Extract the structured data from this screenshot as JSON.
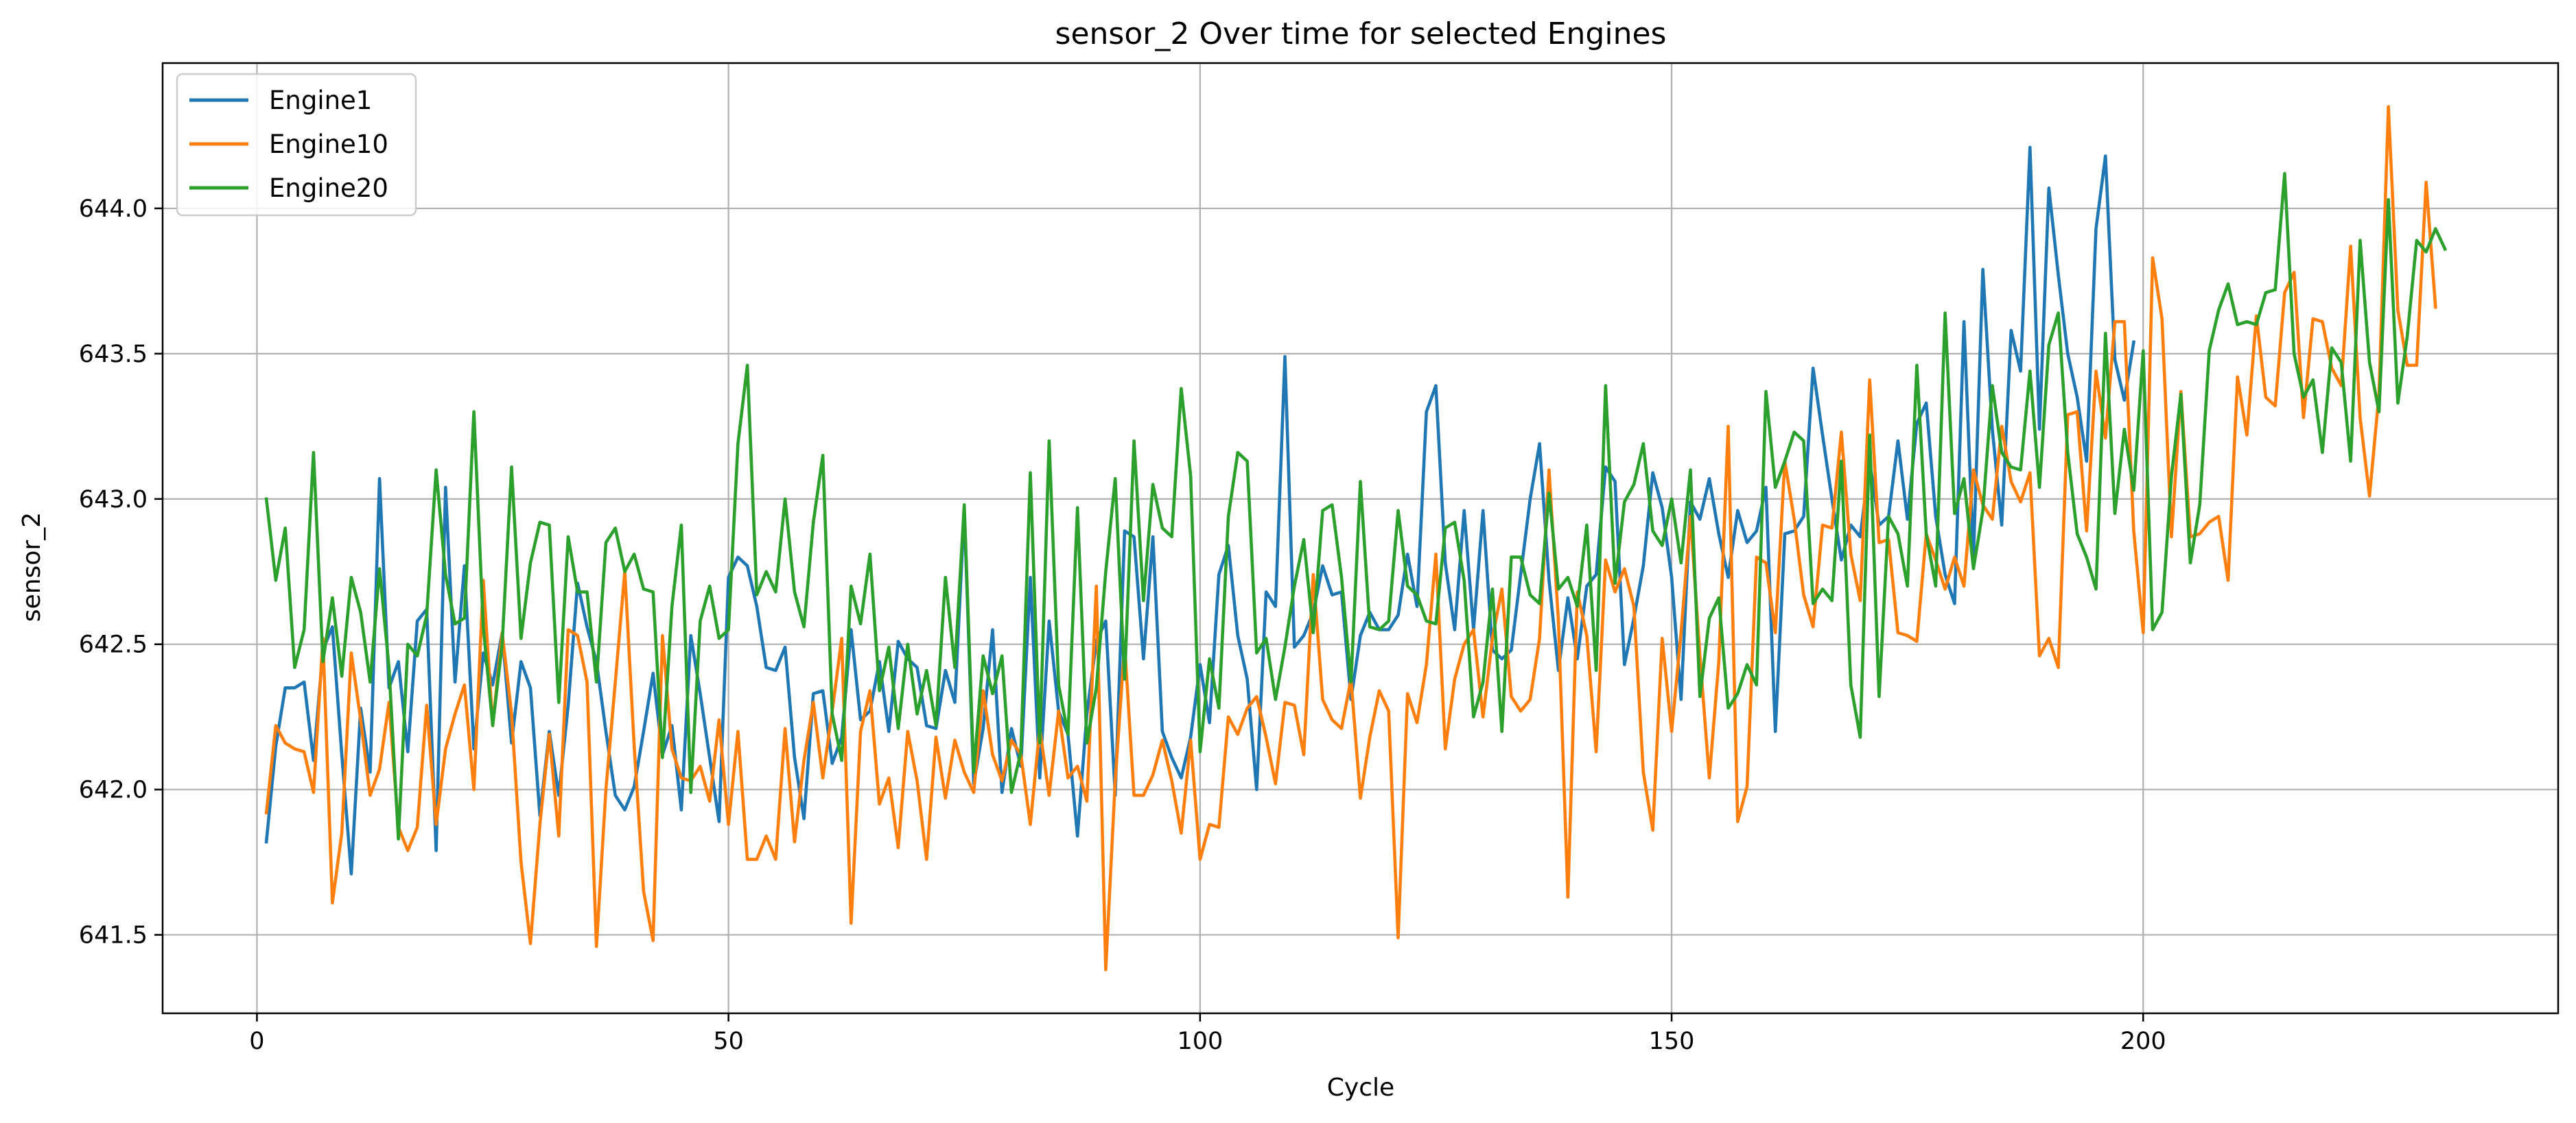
{
  "chart_data": {
    "type": "line",
    "title": "sensor_2 Over time for selected Engines",
    "xlabel": "Cycle",
    "ylabel": "sensor_2",
    "xlim": [
      -10,
      244
    ],
    "ylim": [
      641.23,
      644.5
    ],
    "x_ticks": [
      0,
      50,
      100,
      150,
      200
    ],
    "y_ticks": [
      641.5,
      642.0,
      642.5,
      643.0,
      643.5,
      644.0
    ],
    "x_tick_labels": [
      "0",
      "50",
      "100",
      "150",
      "200"
    ],
    "y_tick_labels": [
      "641.5",
      "642.0",
      "642.5",
      "643.0",
      "643.5",
      "644.0"
    ],
    "grid": true,
    "legend_position": "top-left",
    "series": [
      {
        "name": "Engine1",
        "color": "#1f77b4",
        "start_cycle": 1,
        "values": [
          641.82,
          642.15,
          642.35,
          642.35,
          642.37,
          642.1,
          642.48,
          642.56,
          642.12,
          641.71,
          642.28,
          642.06,
          643.07,
          642.35,
          642.44,
          642.13,
          642.58,
          642.62,
          641.79,
          643.04,
          642.37,
          642.77,
          642.14,
          642.47,
          642.36,
          642.54,
          642.16,
          642.44,
          642.35,
          641.91,
          642.2,
          641.98,
          642.29,
          642.71,
          642.56,
          642.44,
          642.2,
          641.98,
          641.93,
          642.01,
          642.2,
          642.4,
          642.12,
          642.22,
          641.93,
          642.53,
          642.33,
          642.11,
          641.89,
          642.73,
          642.8,
          642.77,
          642.63,
          642.42,
          642.41,
          642.49,
          642.11,
          641.9,
          642.33,
          642.34,
          642.09,
          642.18,
          642.55,
          642.24,
          642.27,
          642.44,
          642.2,
          642.51,
          642.45,
          642.42,
          642.22,
          642.21,
          642.41,
          642.3,
          642.96,
          642.02,
          642.21,
          642.55,
          641.99,
          642.21,
          642.08,
          642.73,
          642.04,
          642.58,
          642.27,
          642.19,
          641.84,
          642.26,
          642.51,
          642.58,
          641.98,
          642.89,
          642.87,
          642.45,
          642.87,
          642.2,
          642.11,
          642.04,
          642.18,
          642.43,
          642.23,
          642.74,
          642.84,
          642.53,
          642.38,
          642.0,
          642.68,
          642.63,
          643.49,
          642.49,
          642.53,
          642.61,
          642.77,
          642.67,
          642.68,
          642.31,
          642.53,
          642.61,
          642.55,
          642.55,
          642.6,
          642.81,
          642.63,
          643.3,
          643.39,
          642.78,
          642.55,
          642.96,
          642.55,
          642.96,
          642.48,
          642.45,
          642.48,
          642.74,
          643.0,
          643.19,
          642.72,
          642.41,
          642.66,
          642.45,
          642.7,
          642.74,
          643.11,
          643.06,
          642.43,
          642.59,
          642.77,
          643.09,
          642.97,
          642.73,
          642.31,
          642.99,
          642.93,
          643.07,
          642.88,
          642.73,
          642.96,
          642.85,
          642.89,
          643.04,
          642.2,
          642.88,
          642.89,
          642.94,
          643.45,
          643.22,
          643.0,
          642.79,
          642.91,
          642.87,
          643.13,
          642.91,
          642.94,
          643.2,
          642.93,
          643.26,
          643.33,
          642.94,
          642.74,
          642.64,
          643.61,
          642.8,
          643.79,
          643.24,
          642.91,
          643.58,
          643.44,
          644.21,
          643.24,
          644.07,
          643.77,
          643.5,
          643.35,
          643.13,
          643.93,
          644.18,
          643.48,
          643.34,
          643.54
        ]
      },
      {
        "name": "Engine10",
        "color": "#ff7f0e",
        "start_cycle": 1,
        "values": [
          641.92,
          642.22,
          642.16,
          642.14,
          642.13,
          641.99,
          642.52,
          641.61,
          641.85,
          642.47,
          642.24,
          641.98,
          642.07,
          642.3,
          641.87,
          641.79,
          641.87,
          642.29,
          641.88,
          642.14,
          642.26,
          642.36,
          642.0,
          642.72,
          642.22,
          642.54,
          642.26,
          641.75,
          641.47,
          641.88,
          642.19,
          641.84,
          642.55,
          642.53,
          642.37,
          641.46,
          642.0,
          642.37,
          642.75,
          642.15,
          641.65,
          641.48,
          642.53,
          642.14,
          642.04,
          642.03,
          642.08,
          641.96,
          642.24,
          641.88,
          642.2,
          641.76,
          641.76,
          641.84,
          641.76,
          642.21,
          641.82,
          642.1,
          642.3,
          642.04,
          642.27,
          642.52,
          641.54,
          642.2,
          642.34,
          641.95,
          642.04,
          641.8,
          642.2,
          642.03,
          641.76,
          642.18,
          641.97,
          642.17,
          642.06,
          641.99,
          642.34,
          642.12,
          642.03,
          642.17,
          642.12,
          641.88,
          642.21,
          641.98,
          642.27,
          642.04,
          642.08,
          641.96,
          642.7,
          641.38,
          642.03,
          642.5,
          641.98,
          641.98,
          642.05,
          642.17,
          642.03,
          641.85,
          642.17,
          641.76,
          641.88,
          641.87,
          642.25,
          642.19,
          642.28,
          642.32,
          642.18,
          642.02,
          642.3,
          642.29,
          642.12,
          642.74,
          642.31,
          642.24,
          642.21,
          642.38,
          641.97,
          642.18,
          642.34,
          642.27,
          641.49,
          642.33,
          642.23,
          642.43,
          642.81,
          642.14,
          642.38,
          642.5,
          642.55,
          642.25,
          642.52,
          642.69,
          642.32,
          642.27,
          642.31,
          642.52,
          643.1,
          642.58,
          641.63,
          642.68,
          642.53,
          642.13,
          642.79,
          642.68,
          642.76,
          642.63,
          642.06,
          641.86,
          642.52,
          642.2,
          642.54,
          642.94,
          642.46,
          642.04,
          642.44,
          643.25,
          641.89,
          642.01,
          642.8,
          642.78,
          642.54,
          643.13,
          642.93,
          642.67,
          642.56,
          642.91,
          642.9,
          643.23,
          642.81,
          642.65,
          643.41,
          642.85,
          642.86,
          642.54,
          642.53,
          642.51,
          642.88,
          642.79,
          642.69,
          642.8,
          642.7,
          643.1,
          642.98,
          642.93,
          643.25,
          643.06,
          642.99,
          643.09,
          642.46,
          642.52,
          642.42,
          643.29,
          643.3,
          642.89,
          643.44,
          643.21,
          643.61,
          643.61,
          642.89,
          642.54,
          643.83,
          643.62,
          642.87,
          643.37,
          642.87,
          642.88,
          642.92,
          642.94,
          642.72,
          643.42,
          643.22,
          643.63,
          643.35,
          643.32,
          643.71,
          643.78,
          643.28,
          643.62,
          643.61,
          643.45,
          643.39,
          643.87,
          643.28,
          643.01,
          643.36,
          644.35,
          643.65,
          643.46,
          643.46,
          644.09,
          643.66
        ]
      },
      {
        "name": "Engine20",
        "color": "#2ca02c",
        "start_cycle": 1,
        "values": [
          643.0,
          642.72,
          642.9,
          642.42,
          642.55,
          643.16,
          642.44,
          642.66,
          642.39,
          642.73,
          642.61,
          642.37,
          642.76,
          642.42,
          641.83,
          642.5,
          642.46,
          642.6,
          643.1,
          642.74,
          642.57,
          642.59,
          643.3,
          642.56,
          642.22,
          642.5,
          643.11,
          642.52,
          642.78,
          642.92,
          642.91,
          642.3,
          642.87,
          642.68,
          642.68,
          642.37,
          642.85,
          642.9,
          642.75,
          642.81,
          642.69,
          642.68,
          642.11,
          642.63,
          642.91,
          641.99,
          642.58,
          642.7,
          642.52,
          642.55,
          643.19,
          643.46,
          642.67,
          642.75,
          642.68,
          643.0,
          642.68,
          642.56,
          642.92,
          643.15,
          642.26,
          642.1,
          642.7,
          642.57,
          642.81,
          642.34,
          642.49,
          642.21,
          642.5,
          642.26,
          642.41,
          642.22,
          642.73,
          642.42,
          642.98,
          642.06,
          642.46,
          642.33,
          642.46,
          641.99,
          642.13,
          643.09,
          642.16,
          643.2,
          642.36,
          642.19,
          642.97,
          642.16,
          642.35,
          642.75,
          643.07,
          642.38,
          643.2,
          642.65,
          643.05,
          642.9,
          642.87,
          643.38,
          643.08,
          642.13,
          642.45,
          642.28,
          642.94,
          643.16,
          643.13,
          642.47,
          642.52,
          642.31,
          642.49,
          642.7,
          642.86,
          642.54,
          642.96,
          642.98,
          642.73,
          642.37,
          643.06,
          642.56,
          642.55,
          642.58,
          642.96,
          642.7,
          642.67,
          642.58,
          642.57,
          642.9,
          642.92,
          642.72,
          642.25,
          642.37,
          642.69,
          642.2,
          642.8,
          642.8,
          642.67,
          642.64,
          643.02,
          642.69,
          642.73,
          642.63,
          642.91,
          642.41,
          643.39,
          642.71,
          642.99,
          643.05,
          643.19,
          642.89,
          642.84,
          643.0,
          642.78,
          643.1,
          642.32,
          642.59,
          642.66,
          642.28,
          642.33,
          642.43,
          642.36,
          643.37,
          643.04,
          643.13,
          643.23,
          643.2,
          642.64,
          642.69,
          642.65,
          643.13,
          642.36,
          642.18,
          643.22,
          642.32,
          642.94,
          642.88,
          642.7,
          643.46,
          642.88,
          642.7,
          643.64,
          642.95,
          643.07,
          642.76,
          642.96,
          643.39,
          643.16,
          643.11,
          643.1,
          643.44,
          643.04,
          643.53,
          643.64,
          643.16,
          642.88,
          642.8,
          642.69,
          643.57,
          642.95,
          643.24,
          643.03,
          643.51,
          642.55,
          642.61,
          643.08,
          643.36,
          642.78,
          642.98,
          643.51,
          643.65,
          643.74,
          643.6,
          643.61,
          643.6,
          643.71,
          643.72,
          644.12,
          643.5,
          643.35,
          643.41,
          643.16,
          643.52,
          643.47,
          643.13,
          643.89,
          643.47,
          643.3,
          644.03,
          643.33,
          643.56,
          643.89,
          643.85,
          643.93,
          643.86
        ]
      }
    ]
  }
}
